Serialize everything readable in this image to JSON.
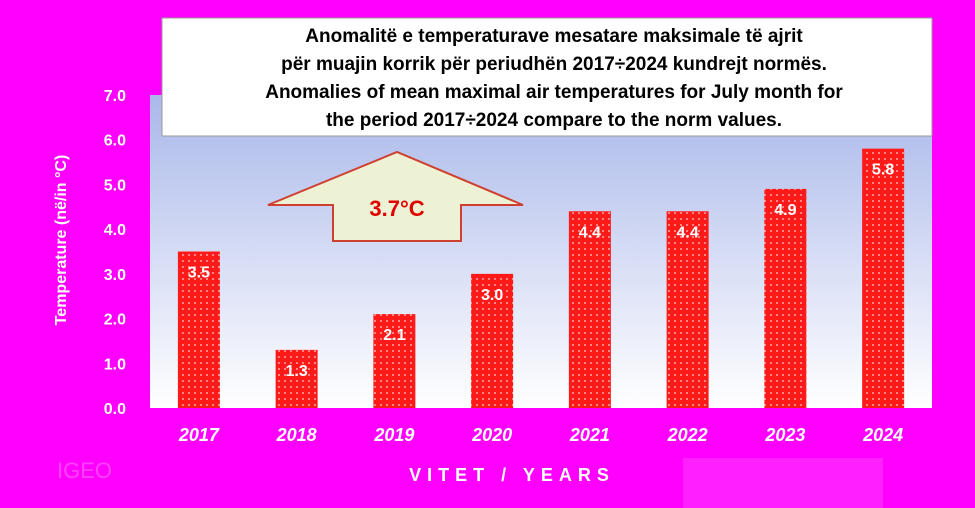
{
  "colors": {
    "background": "#ff00ff",
    "plot_top": "#aab8ea",
    "plot_bottom": "#ffffff",
    "bar": "#ff1a1a",
    "arrow_fill": "#eef2d4",
    "arrow_stroke": "#d04030",
    "arrow_text": "#e00000"
  },
  "annotation": {
    "text": "3.7°C"
  },
  "watermark": "IGEO",
  "chart_data": {
    "type": "bar",
    "title_lines": [
      "Anomalitë e temperaturave mesatare maksimale të ajrit",
      "për muajin korrik për periudhën 2017÷2024  kundrejt normës.",
      "Anomalies of mean maximal air temperatures for July month for",
      "the period 2017÷2024  compare to the norm values."
    ],
    "xlabel": "VITET / YEARS",
    "ylabel": "Temperature (në/in °C)",
    "categories": [
      "2017",
      "2018",
      "2019",
      "2020",
      "2021",
      "2022",
      "2023",
      "2024"
    ],
    "values": [
      3.5,
      1.3,
      2.1,
      3.0,
      4.4,
      4.4,
      4.9,
      5.8
    ],
    "value_labels": [
      "3.5",
      "1.3",
      "2.1",
      "3.0",
      "4.4",
      "4.4",
      "4.9",
      "5.8"
    ],
    "yticks": [
      "0.0",
      "1.0",
      "2.0",
      "3.0",
      "4.0",
      "5.0",
      "6.0",
      "7.0"
    ],
    "ylim": [
      0,
      7
    ],
    "grid": false,
    "legend": "none"
  }
}
